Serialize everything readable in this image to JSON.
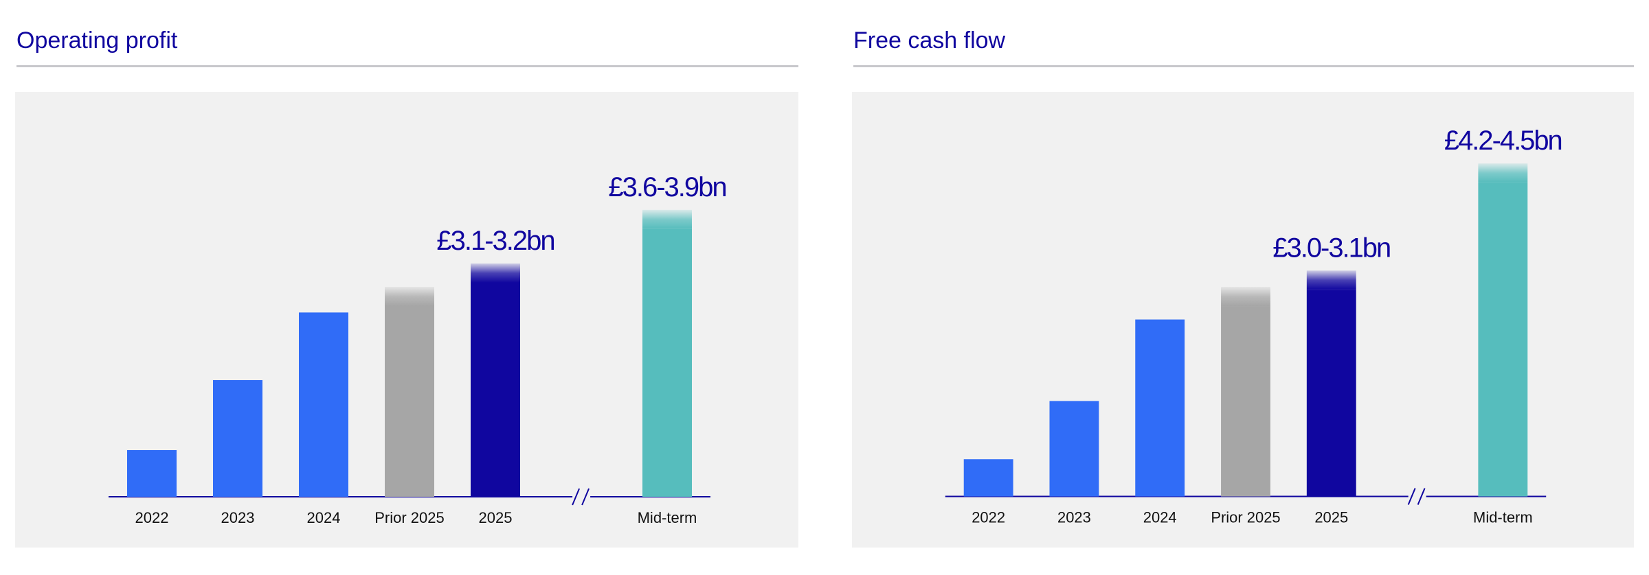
{
  "colors": {
    "historic": "#306cf7",
    "prior": "#a6a6a6",
    "current": "#10069f",
    "midterm": "#56bdbd",
    "axis": "#10069f",
    "title": "#10069f"
  },
  "chart_data": [
    {
      "type": "bar",
      "title": "Operating profit",
      "categories": [
        "2022",
        "2023",
        "2024",
        "Prior 2025",
        "2025",
        "Mid-term"
      ],
      "values": [
        1.0,
        2.5,
        3.95,
        4.5,
        5.0,
        6.15
      ],
      "bar_colors": [
        "historic",
        "historic",
        "historic",
        "prior",
        "current",
        "midterm"
      ],
      "range_labels": [
        {
          "category": "2025",
          "text": "£3.1-3.2bn"
        },
        {
          "category": "Mid-term",
          "text": "£3.6-3.9bn"
        }
      ],
      "axis_break_after": "2025",
      "ylim": [
        0,
        8.5
      ],
      "grid": false,
      "legend": "none"
    },
    {
      "type": "bar",
      "title": "Free cash flow",
      "categories": [
        "2022",
        "2023",
        "2024",
        "Prior 2025",
        "2025",
        "Mid-term"
      ],
      "values": [
        0.8,
        2.05,
        3.8,
        4.5,
        4.85,
        7.15
      ],
      "bar_colors": [
        "historic",
        "historic",
        "historic",
        "prior",
        "current",
        "midterm"
      ],
      "range_labels": [
        {
          "category": "2025",
          "text": "£3.0-3.1bn"
        },
        {
          "category": "Mid-term",
          "text": "£4.2-4.5bn"
        }
      ],
      "axis_break_after": "2025",
      "ylim": [
        0,
        8.5
      ],
      "grid": false,
      "legend": "none"
    }
  ]
}
